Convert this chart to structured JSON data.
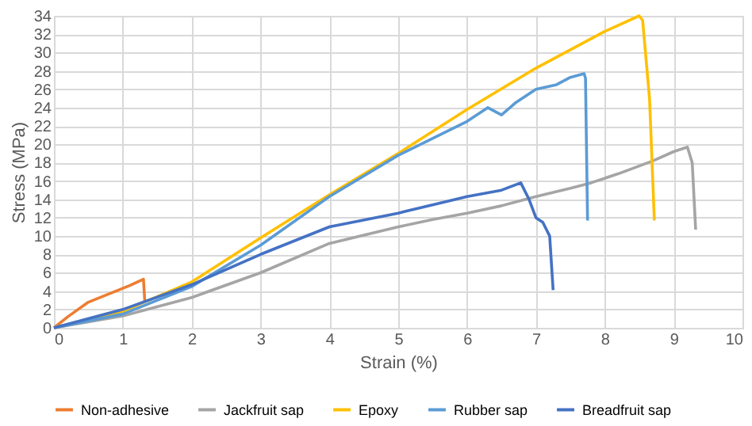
{
  "chart_data": {
    "type": "line",
    "xlabel": "Strain (%)",
    "ylabel": "Stress (MPa)",
    "xlim": [
      0,
      10
    ],
    "xticks": [
      0,
      1,
      2,
      3,
      4,
      5,
      6,
      7,
      8,
      9,
      10
    ],
    "ylim": [
      0,
      34
    ],
    "yticks": [
      0,
      2,
      4,
      6,
      8,
      10,
      12,
      14,
      16,
      18,
      20,
      22,
      24,
      26,
      28,
      30,
      32,
      34
    ],
    "grid": true,
    "legend": "bottom",
    "marker": "none",
    "line_style": "solid",
    "series": [
      {
        "name": "Non-adhesive",
        "color": "#ed7d31",
        "x": [
          0,
          0.2,
          0.5,
          0.8,
          1.1,
          1.3,
          1.32
        ],
        "values": [
          0,
          1.2,
          2.8,
          3.7,
          4.6,
          5.3,
          2.8
        ]
      },
      {
        "name": "Jackfruit sap",
        "color": "#a5a5a5",
        "x": [
          0,
          1,
          2,
          3,
          4,
          5,
          5.5,
          6,
          6.5,
          7,
          7.5,
          7.8,
          8.2,
          8.7,
          9,
          9.2,
          9.27,
          9.32
        ],
        "values": [
          0,
          1.3,
          3.3,
          6,
          9.2,
          11,
          11.8,
          12.5,
          13.3,
          14.3,
          15.2,
          15.8,
          16.8,
          18.2,
          19.2,
          19.7,
          18,
          10.7
        ]
      },
      {
        "name": "Epoxy",
        "color": "#ffc000",
        "x": [
          0,
          1,
          2,
          3,
          4,
          5,
          6,
          7,
          8,
          8.5,
          8.55,
          8.65,
          8.72
        ],
        "values": [
          0,
          1.8,
          5,
          9.8,
          14.5,
          19,
          23.8,
          28.3,
          32.3,
          34,
          33.5,
          25,
          11.7
        ]
      },
      {
        "name": "Rubber sap",
        "color": "#5b9bd5",
        "x": [
          0,
          1,
          2,
          3,
          4,
          5,
          6,
          6.3,
          6.5,
          6.7,
          7,
          7.3,
          7.5,
          7.7,
          7.72,
          7.75
        ],
        "values": [
          0,
          1.5,
          4.5,
          9,
          14.3,
          18.8,
          22.5,
          24,
          23.2,
          24.5,
          26,
          26.5,
          27.3,
          27.7,
          27.2,
          11.7
        ]
      },
      {
        "name": "Breadfruit sap",
        "color": "#4472c4",
        "x": [
          0,
          1,
          2,
          3,
          4,
          5,
          6,
          6.5,
          6.78,
          6.9,
          7,
          7.1,
          7.2,
          7.25
        ],
        "values": [
          0,
          2,
          4.7,
          8,
          11,
          12.5,
          14.3,
          15,
          15.8,
          14,
          12,
          11.5,
          10,
          4.1
        ]
      }
    ]
  }
}
